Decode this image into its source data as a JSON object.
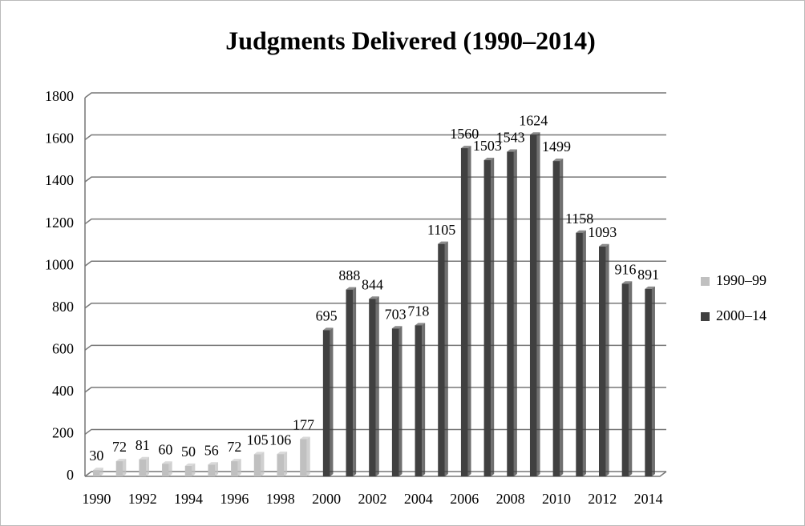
{
  "chart_data": {
    "type": "bar",
    "title": "Judgments Delivered (1990–2014)",
    "categories": [
      "1990",
      null,
      "1992",
      null,
      "1994",
      null,
      "1996",
      null,
      "1998",
      null,
      "2000",
      null,
      "2002",
      null,
      "2004",
      null,
      "2006",
      null,
      "2008",
      null,
      "2010",
      null,
      "2012",
      null,
      "2014"
    ],
    "series": [
      {
        "name": "1990–99",
        "color": "#c0c0c0",
        "values": [
          30,
          72,
          81,
          60,
          50,
          56,
          72,
          105,
          106,
          177,
          null,
          null,
          null,
          null,
          null,
          null,
          null,
          null,
          null,
          null,
          null,
          null,
          null,
          null,
          null
        ]
      },
      {
        "name": "2000–14",
        "color": "#404040",
        "values": [
          null,
          null,
          null,
          null,
          null,
          null,
          null,
          null,
          null,
          null,
          695,
          888,
          844,
          703,
          718,
          1105,
          1560,
          1503,
          1543,
          1624,
          1499,
          1158,
          1093,
          916,
          891
        ]
      }
    ],
    "ylim": [
      0,
      1800
    ],
    "yticks": [
      0,
      200,
      400,
      600,
      800,
      1000,
      1200,
      1400,
      1600,
      1800
    ],
    "grid": true,
    "legend": "right"
  }
}
